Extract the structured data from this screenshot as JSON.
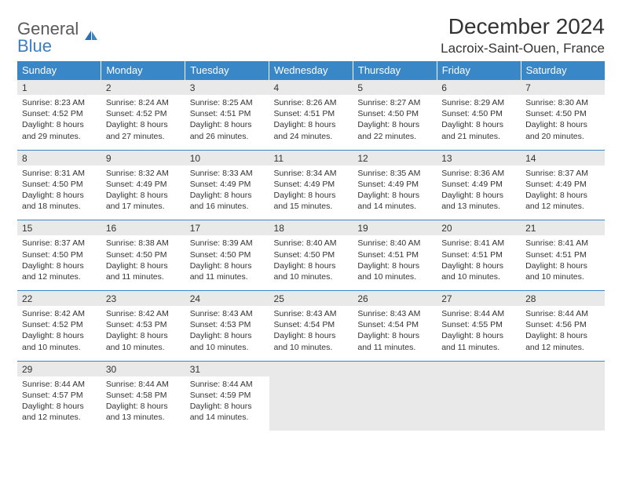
{
  "logo": {
    "text1": "General",
    "text2": "Blue"
  },
  "title": "December 2024",
  "location": "Lacroix-Saint-Ouen, France",
  "colors": {
    "header_bg": "#3a87c7",
    "header_text": "#ffffff",
    "daynum_bg": "#e9e9e9",
    "text": "#333333",
    "logo_gray": "#5a5a5a",
    "logo_blue": "#3a7fc4"
  },
  "fonts": {
    "title_size": 28,
    "location_size": 17,
    "header_size": 13,
    "daynum_size": 12,
    "cell_size": 10.5
  },
  "dayNames": [
    "Sunday",
    "Monday",
    "Tuesday",
    "Wednesday",
    "Thursday",
    "Friday",
    "Saturday"
  ],
  "weeks": [
    [
      {
        "n": 1,
        "sr": "8:23 AM",
        "ss": "4:52 PM",
        "dl": "8 hours and 29 minutes."
      },
      {
        "n": 2,
        "sr": "8:24 AM",
        "ss": "4:52 PM",
        "dl": "8 hours and 27 minutes."
      },
      {
        "n": 3,
        "sr": "8:25 AM",
        "ss": "4:51 PM",
        "dl": "8 hours and 26 minutes."
      },
      {
        "n": 4,
        "sr": "8:26 AM",
        "ss": "4:51 PM",
        "dl": "8 hours and 24 minutes."
      },
      {
        "n": 5,
        "sr": "8:27 AM",
        "ss": "4:50 PM",
        "dl": "8 hours and 22 minutes."
      },
      {
        "n": 6,
        "sr": "8:29 AM",
        "ss": "4:50 PM",
        "dl": "8 hours and 21 minutes."
      },
      {
        "n": 7,
        "sr": "8:30 AM",
        "ss": "4:50 PM",
        "dl": "8 hours and 20 minutes."
      }
    ],
    [
      {
        "n": 8,
        "sr": "8:31 AM",
        "ss": "4:50 PM",
        "dl": "8 hours and 18 minutes."
      },
      {
        "n": 9,
        "sr": "8:32 AM",
        "ss": "4:49 PM",
        "dl": "8 hours and 17 minutes."
      },
      {
        "n": 10,
        "sr": "8:33 AM",
        "ss": "4:49 PM",
        "dl": "8 hours and 16 minutes."
      },
      {
        "n": 11,
        "sr": "8:34 AM",
        "ss": "4:49 PM",
        "dl": "8 hours and 15 minutes."
      },
      {
        "n": 12,
        "sr": "8:35 AM",
        "ss": "4:49 PM",
        "dl": "8 hours and 14 minutes."
      },
      {
        "n": 13,
        "sr": "8:36 AM",
        "ss": "4:49 PM",
        "dl": "8 hours and 13 minutes."
      },
      {
        "n": 14,
        "sr": "8:37 AM",
        "ss": "4:49 PM",
        "dl": "8 hours and 12 minutes."
      }
    ],
    [
      {
        "n": 15,
        "sr": "8:37 AM",
        "ss": "4:50 PM",
        "dl": "8 hours and 12 minutes."
      },
      {
        "n": 16,
        "sr": "8:38 AM",
        "ss": "4:50 PM",
        "dl": "8 hours and 11 minutes."
      },
      {
        "n": 17,
        "sr": "8:39 AM",
        "ss": "4:50 PM",
        "dl": "8 hours and 11 minutes."
      },
      {
        "n": 18,
        "sr": "8:40 AM",
        "ss": "4:50 PM",
        "dl": "8 hours and 10 minutes."
      },
      {
        "n": 19,
        "sr": "8:40 AM",
        "ss": "4:51 PM",
        "dl": "8 hours and 10 minutes."
      },
      {
        "n": 20,
        "sr": "8:41 AM",
        "ss": "4:51 PM",
        "dl": "8 hours and 10 minutes."
      },
      {
        "n": 21,
        "sr": "8:41 AM",
        "ss": "4:51 PM",
        "dl": "8 hours and 10 minutes."
      }
    ],
    [
      {
        "n": 22,
        "sr": "8:42 AM",
        "ss": "4:52 PM",
        "dl": "8 hours and 10 minutes."
      },
      {
        "n": 23,
        "sr": "8:42 AM",
        "ss": "4:53 PM",
        "dl": "8 hours and 10 minutes."
      },
      {
        "n": 24,
        "sr": "8:43 AM",
        "ss": "4:53 PM",
        "dl": "8 hours and 10 minutes."
      },
      {
        "n": 25,
        "sr": "8:43 AM",
        "ss": "4:54 PM",
        "dl": "8 hours and 10 minutes."
      },
      {
        "n": 26,
        "sr": "8:43 AM",
        "ss": "4:54 PM",
        "dl": "8 hours and 11 minutes."
      },
      {
        "n": 27,
        "sr": "8:44 AM",
        "ss": "4:55 PM",
        "dl": "8 hours and 11 minutes."
      },
      {
        "n": 28,
        "sr": "8:44 AM",
        "ss": "4:56 PM",
        "dl": "8 hours and 12 minutes."
      }
    ],
    [
      {
        "n": 29,
        "sr": "8:44 AM",
        "ss": "4:57 PM",
        "dl": "8 hours and 12 minutes."
      },
      {
        "n": 30,
        "sr": "8:44 AM",
        "ss": "4:58 PM",
        "dl": "8 hours and 13 minutes."
      },
      {
        "n": 31,
        "sr": "8:44 AM",
        "ss": "4:59 PM",
        "dl": "8 hours and 14 minutes."
      },
      null,
      null,
      null,
      null
    ]
  ],
  "labels": {
    "sunrise": "Sunrise:",
    "sunset": "Sunset:",
    "daylight": "Daylight:"
  }
}
